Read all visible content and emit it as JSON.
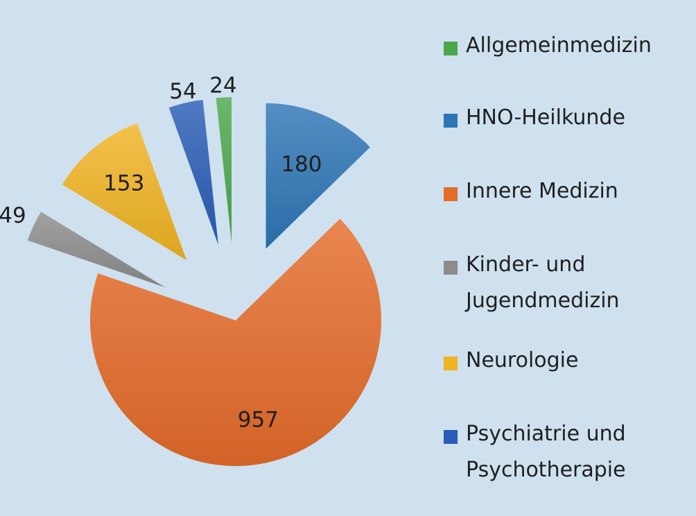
{
  "chart_data": {
    "type": "pie",
    "slices": [
      {
        "name": "HNO-Heilkunde",
        "value": 180,
        "color": "#2e75b6",
        "exploded": true
      },
      {
        "name": "Innere Medizin",
        "value": 957,
        "color": "#e46c2a",
        "exploded": false
      },
      {
        "name": "Kinder- und Jugendmedizin",
        "value": 49,
        "color": "#8c8c8c",
        "exploded": true
      },
      {
        "name": "Neurologie",
        "value": 153,
        "color": "#f0b323",
        "exploded": true
      },
      {
        "name": "Psychiatrie und Psychotherapie",
        "value": 54,
        "color": "#2a5db5",
        "exploded": true
      },
      {
        "name": "Allgemeinmedizin",
        "value": 24,
        "color": "#4aa84b",
        "exploded": true
      }
    ],
    "legend": [
      {
        "label": "Allgemeinmedizin",
        "color": "#4aa84b"
      },
      {
        "label": "HNO-Heilkunde",
        "color": "#2e75b6"
      },
      {
        "label": "Innere Medizin",
        "color": "#e46c2a"
      },
      {
        "label": "Kinder- und\nJugendmedizin",
        "color": "#8c8c8c"
      },
      {
        "label": "Neurologie",
        "color": "#f0b323"
      },
      {
        "label": "Psychiatrie und\nPsychotherapie",
        "color": "#2a5db5"
      }
    ],
    "legend_position": "right",
    "background": "#cfe1ef"
  }
}
